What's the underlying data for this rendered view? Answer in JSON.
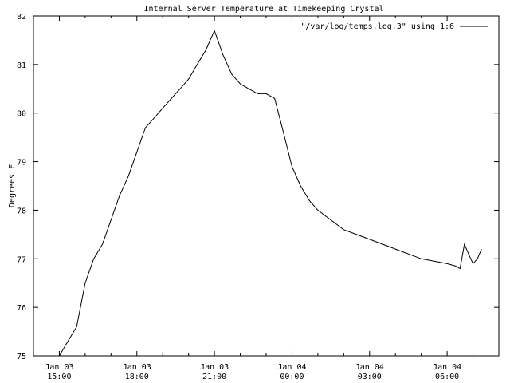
{
  "chart_data": {
    "type": "line",
    "title": "Internal Server Temperature at Timekeeping Crystal",
    "xlabel": "",
    "ylabel": "Degrees F",
    "xlim": [
      14,
      32
    ],
    "ylim": [
      75,
      82
    ],
    "grid": false,
    "legend_position": "top-right",
    "yticks": [
      {
        "value": 75,
        "label": "75"
      },
      {
        "value": 76,
        "label": "76"
      },
      {
        "value": 77,
        "label": "77"
      },
      {
        "value": 78,
        "label": "78"
      },
      {
        "value": 79,
        "label": "79"
      },
      {
        "value": 80,
        "label": "80"
      },
      {
        "value": 81,
        "label": "81"
      },
      {
        "value": 82,
        "label": "82"
      }
    ],
    "xticks": [
      {
        "value": 15,
        "line1": "Jan 03",
        "line2": "15:00"
      },
      {
        "value": 18,
        "line1": "Jan 03",
        "line2": "18:00"
      },
      {
        "value": 21,
        "line1": "Jan 03",
        "line2": "21:00"
      },
      {
        "value": 24,
        "line1": "Jan 04",
        "line2": "00:00"
      },
      {
        "value": 27,
        "line1": "Jan 04",
        "line2": "03:00"
      },
      {
        "value": 30,
        "line1": "Jan 04",
        "line2": "06:00"
      }
    ],
    "x_units": "hours since Jan 03 00:00",
    "series": [
      {
        "name": "\"/var/log/temps.log.3\" using 1:6",
        "color": "#000000",
        "x": [
          15.0,
          15.33,
          15.67,
          16.0,
          16.33,
          16.67,
          17.0,
          17.33,
          17.67,
          18.0,
          18.33,
          18.67,
          19.0,
          19.33,
          19.67,
          20.0,
          20.33,
          20.67,
          21.0,
          21.33,
          21.67,
          22.0,
          22.33,
          22.67,
          23.0,
          23.33,
          23.67,
          24.0,
          24.33,
          24.67,
          25.0,
          25.5,
          26.0,
          26.5,
          27.0,
          27.5,
          28.0,
          28.5,
          29.0,
          29.5,
          30.0,
          30.33,
          30.5,
          30.67,
          30.83,
          31.0,
          31.17,
          31.33
        ],
        "y": [
          75.0,
          75.3,
          75.6,
          76.5,
          77.0,
          77.3,
          77.8,
          78.3,
          78.7,
          79.2,
          79.7,
          79.9,
          80.1,
          80.3,
          80.5,
          80.7,
          81.0,
          81.3,
          81.7,
          81.2,
          80.8,
          80.6,
          80.5,
          80.4,
          80.4,
          80.3,
          79.6,
          78.9,
          78.5,
          78.2,
          78.0,
          77.8,
          77.6,
          77.5,
          77.4,
          77.3,
          77.2,
          77.1,
          77.0,
          76.95,
          76.9,
          76.85,
          76.8,
          77.3,
          77.1,
          76.9,
          77.0,
          77.2
        ]
      }
    ]
  }
}
